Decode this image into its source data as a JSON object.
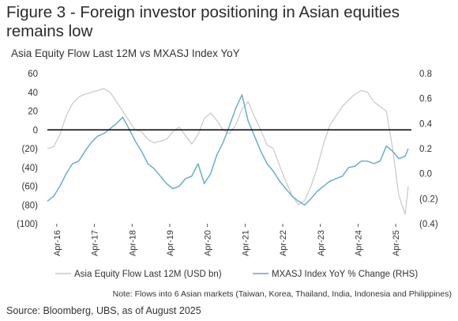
{
  "title": "Figure 3 - Foreign investor positioning in Asian equities remains low",
  "note": "Note: Flows into 6 Asian markets (Taiwan, Korea, Thailand, India, Indonesia and Philippines)",
  "source": "Source: Bloomberg, UBS, as of August 2025",
  "colors": {
    "flow": "#c8c8c8",
    "mxasj": "#5fa9cf",
    "zero_line": "#000000",
    "axis": "#333333"
  },
  "chart_data": {
    "type": "line",
    "title": "Asia Equity Flow Last 12M vs MXASJ Index YoY",
    "x_tick_labels": [
      "Apr-16",
      "Apr-17",
      "Apr-18",
      "Apr-19",
      "Apr-20",
      "Apr-21",
      "Apr-22",
      "Apr-23",
      "Apr-24",
      "Apr-25"
    ],
    "xlim": [
      "2016-01",
      "2025-09"
    ],
    "y_left": {
      "lim": [
        -100,
        60
      ],
      "ticks": [
        60,
        40,
        20,
        0,
        -20,
        -40,
        -60,
        -80,
        -100
      ],
      "tick_labels": [
        "60",
        "40",
        "20",
        "0",
        "(20)",
        "(40)",
        "(60)",
        "(80)",
        "(100)"
      ]
    },
    "y_right": {
      "lim": [
        -0.4,
        0.8
      ],
      "ticks": [
        0.8,
        0.6,
        0.4,
        0.2,
        0.0,
        -0.2,
        -0.4
      ],
      "tick_labels": [
        "0.8",
        "0.6",
        "0.4",
        "0.2",
        "0.0",
        "(0.2)",
        "(0.4)"
      ]
    },
    "legend_position": "bottom",
    "series": [
      {
        "name": "Asia Equity Flow Last 12M (USD bn)",
        "axis": "left",
        "x": [
          "2016-01",
          "2016-03",
          "2016-05",
          "2016-07",
          "2016-09",
          "2016-11",
          "2017-01",
          "2017-03",
          "2017-05",
          "2017-07",
          "2017-09",
          "2017-11",
          "2018-01",
          "2018-03",
          "2018-05",
          "2018-07",
          "2018-09",
          "2018-11",
          "2019-01",
          "2019-03",
          "2019-05",
          "2019-07",
          "2019-09",
          "2019-11",
          "2020-01",
          "2020-03",
          "2020-05",
          "2020-07",
          "2020-09",
          "2020-11",
          "2021-01",
          "2021-03",
          "2021-05",
          "2021-07",
          "2021-09",
          "2021-11",
          "2022-01",
          "2022-03",
          "2022-05",
          "2022-07",
          "2022-09",
          "2022-11",
          "2023-01",
          "2023-03",
          "2023-05",
          "2023-07",
          "2023-09",
          "2023-11",
          "2024-01",
          "2024-03",
          "2024-05",
          "2024-07",
          "2024-09",
          "2024-11",
          "2025-01",
          "2025-03",
          "2025-05",
          "2025-07",
          "2025-08"
        ],
        "values": [
          -20,
          -18,
          -5,
          15,
          28,
          35,
          38,
          40,
          42,
          44,
          40,
          30,
          20,
          10,
          0,
          -2,
          -10,
          -14,
          -12,
          -10,
          -2,
          3,
          -6,
          -15,
          -5,
          12,
          18,
          10,
          0,
          -4,
          5,
          22,
          30,
          14,
          0,
          -16,
          -20,
          -38,
          -55,
          -70,
          -80,
          -75,
          -60,
          -40,
          -15,
          5,
          15,
          25,
          32,
          38,
          42,
          40,
          30,
          25,
          20,
          -20,
          -70,
          -90,
          -60
        ]
      },
      {
        "name": "MXASJ Index YoY % Change (RHS)",
        "axis": "right",
        "x": [
          "2016-01",
          "2016-03",
          "2016-05",
          "2016-07",
          "2016-09",
          "2016-11",
          "2017-01",
          "2017-03",
          "2017-05",
          "2017-07",
          "2017-09",
          "2017-11",
          "2018-01",
          "2018-03",
          "2018-05",
          "2018-07",
          "2018-09",
          "2018-11",
          "2019-01",
          "2019-03",
          "2019-05",
          "2019-07",
          "2019-09",
          "2019-11",
          "2020-01",
          "2020-03",
          "2020-05",
          "2020-07",
          "2020-09",
          "2020-11",
          "2021-01",
          "2021-03",
          "2021-05",
          "2021-07",
          "2021-09",
          "2021-11",
          "2022-01",
          "2022-03",
          "2022-05",
          "2022-07",
          "2022-09",
          "2022-11",
          "2023-01",
          "2023-03",
          "2023-05",
          "2023-07",
          "2023-09",
          "2023-11",
          "2024-01",
          "2024-03",
          "2024-05",
          "2024-07",
          "2024-09",
          "2024-11",
          "2025-01",
          "2025-03",
          "2025-05",
          "2025-07",
          "2025-08"
        ],
        "values": [
          -0.22,
          -0.18,
          -0.1,
          0.0,
          0.08,
          0.1,
          0.18,
          0.25,
          0.3,
          0.32,
          0.36,
          0.4,
          0.45,
          0.36,
          0.26,
          0.18,
          0.08,
          0.04,
          -0.02,
          -0.08,
          -0.12,
          -0.1,
          -0.04,
          -0.02,
          0.08,
          -0.08,
          0.0,
          0.15,
          0.25,
          0.38,
          0.52,
          0.63,
          0.42,
          0.3,
          0.18,
          0.08,
          0.02,
          -0.06,
          -0.12,
          -0.18,
          -0.22,
          -0.25,
          -0.2,
          -0.14,
          -0.1,
          -0.06,
          -0.04,
          -0.02,
          0.05,
          0.06,
          0.1,
          0.1,
          0.08,
          0.1,
          0.22,
          0.18,
          0.12,
          0.14,
          0.2
        ]
      }
    ]
  }
}
